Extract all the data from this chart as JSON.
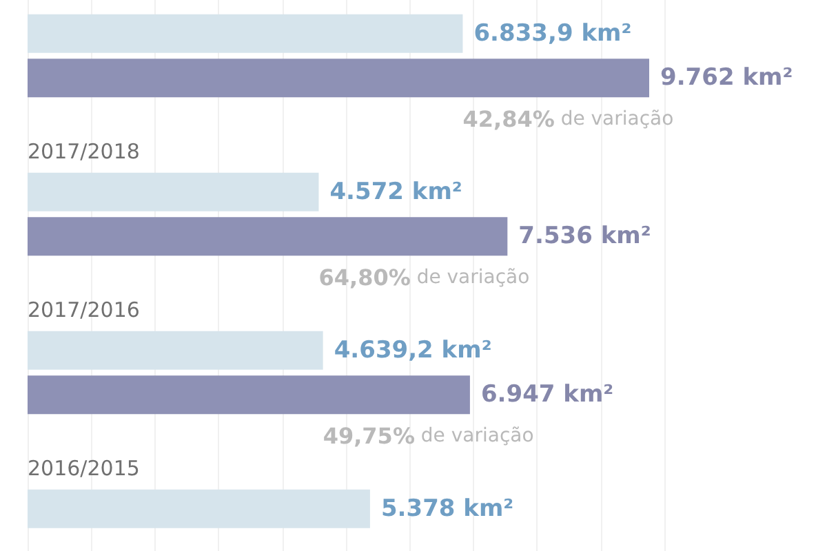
{
  "chart_data": {
    "type": "bar",
    "orientation": "horizontal",
    "categories": [
      null,
      "2017/2018",
      "2017/2016",
      "2016/2015"
    ],
    "series": [
      {
        "color": "#d6e4ec",
        "values": [
          6833.9,
          4572,
          4639.2,
          5378
        ],
        "value_labels": [
          "6.833,9 km²",
          "4.572 km²",
          "4.639,2 km²",
          "5.378 km²"
        ]
      },
      {
        "color": "#8e91b5",
        "values": [
          9762,
          7536,
          6947,
          null
        ],
        "value_labels": [
          "9.762 km²",
          "7.536 km²",
          "6.947 km²",
          null
        ]
      }
    ],
    "annotations": [
      "42,84% de variação",
      "64,80% de variação",
      "49,75% de variação"
    ],
    "xlim": [
      0,
      10000
    ],
    "xticks": [
      {
        "value": 0,
        "label": null
      },
      {
        "value": 1000,
        "label": null
      },
      {
        "value": 2000,
        "label": null
      },
      {
        "value": 3000,
        "label": null
      },
      {
        "value": 4000,
        "label": null
      },
      {
        "value": 5000,
        "label": null
      },
      {
        "value": 6000,
        "label": null
      },
      {
        "value": 7000,
        "label": null
      },
      {
        "value": 8000,
        "label": null
      },
      {
        "value": 9000,
        "label": null
      },
      {
        "value": 10000,
        "label": null
      }
    ],
    "grid": "x",
    "tick_labels": "y"
  }
}
